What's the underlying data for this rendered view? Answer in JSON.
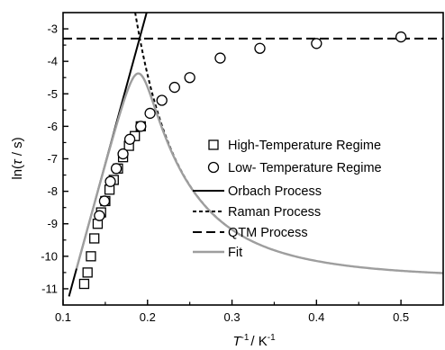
{
  "chart_data": {
    "type": "scatter",
    "xlabel": {
      "base": "T",
      "sup": "-1",
      "unit": "/ K",
      "unit_sup": "-1"
    },
    "ylabel": {
      "prefix": "ln(",
      "symbol": "τ",
      "suffix": " / s)"
    },
    "xlim": [
      0.1,
      0.55
    ],
    "ylim": [
      -11.5,
      -2.5
    ],
    "x_ticks": [
      0.1,
      0.2,
      0.3,
      0.4,
      0.5
    ],
    "y_ticks": [
      -3,
      -4,
      -5,
      -6,
      -7,
      -8,
      -9,
      -10,
      -11
    ],
    "legend_position": "right",
    "series": [
      {
        "name": "High-Temperature Regime",
        "marker": "square",
        "points": [
          [
            0.125,
            -10.85
          ],
          [
            0.129,
            -10.5
          ],
          [
            0.133,
            -10.0
          ],
          [
            0.137,
            -9.45
          ],
          [
            0.141,
            -9.0
          ],
          [
            0.145,
            -8.65
          ],
          [
            0.15,
            -8.3
          ],
          [
            0.155,
            -7.95
          ],
          [
            0.16,
            -7.65
          ],
          [
            0.165,
            -7.3
          ],
          [
            0.171,
            -6.95
          ],
          [
            0.178,
            -6.6
          ],
          [
            0.185,
            -6.3
          ],
          [
            0.192,
            -6.0
          ]
        ]
      },
      {
        "name": "Low- Temperature Regime",
        "marker": "circle",
        "points": [
          [
            0.143,
            -8.75
          ],
          [
            0.149,
            -8.3
          ],
          [
            0.156,
            -7.7
          ],
          [
            0.163,
            -7.3
          ],
          [
            0.171,
            -6.85
          ],
          [
            0.179,
            -6.4
          ],
          [
            0.192,
            -6.0
          ],
          [
            0.203,
            -5.6
          ],
          [
            0.217,
            -5.2
          ],
          [
            0.232,
            -4.8
          ],
          [
            0.25,
            -4.5
          ],
          [
            0.286,
            -3.9
          ],
          [
            0.333,
            -3.6
          ],
          [
            0.4,
            -3.45
          ],
          [
            0.5,
            -3.25
          ]
        ]
      }
    ],
    "lines": [
      {
        "name": "Orbach Process",
        "style": "solid",
        "color": "#000000"
      },
      {
        "name": "Raman Process",
        "style": "short-dash",
        "color": "#000000"
      },
      {
        "name": "QTM Process",
        "style": "long-dash",
        "color": "#000000"
      },
      {
        "name": "Fit",
        "style": "solid",
        "color": "#9e9e9e"
      }
    ],
    "model": {
      "orbach": [
        -21.4,
        95
      ],
      "raman": [
        -10.7,
        0.0225,
        3.5
      ],
      "qtm": -3.3
    }
  }
}
